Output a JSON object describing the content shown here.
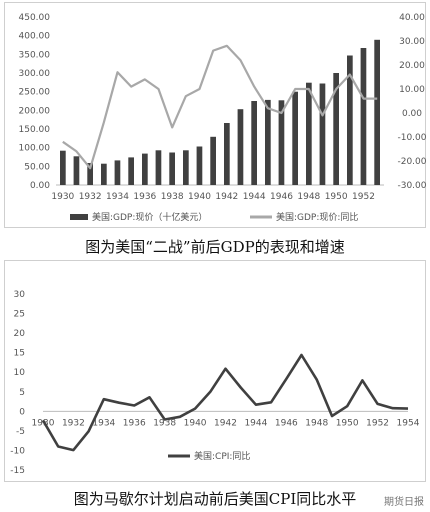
{
  "captions": {
    "top": "图为美国“二战”前后GDP的表现和增速",
    "bottom": "图为马歇尔计划启动前后美国CPI同比水平"
  },
  "watermark": "期货日报",
  "chart_data": [
    {
      "type": "bar+line",
      "categories": [
        1930,
        1931,
        1932,
        1933,
        1934,
        1935,
        1936,
        1937,
        1938,
        1939,
        1940,
        1941,
        1942,
        1943,
        1944,
        1945,
        1946,
        1947,
        1948,
        1949,
        1950,
        1951,
        1952,
        1953
      ],
      "x_tick_labels": [
        "1930",
        "1932",
        "1934",
        "1936",
        "1938",
        "1940",
        "1942",
        "1944",
        "1946",
        "1948",
        "1950",
        "1952"
      ],
      "y_left_ticks": [
        "0.00",
        "50.00",
        "100.00",
        "150.00",
        "200.00",
        "250.00",
        "300.00",
        "350.00",
        "400.00",
        "450.00"
      ],
      "y_right_ticks": [
        "-30.00",
        "-20.00",
        "-10.00",
        "0.00",
        "10.00",
        "20.00",
        "30.00",
        "40.00"
      ],
      "ylim_left": [
        0,
        450
      ],
      "ylim_right": [
        -30,
        40
      ],
      "grid": false,
      "legend_position": "bottom",
      "series": [
        {
          "name": "美国:GDP:现价（十亿美元）",
          "kind": "bar",
          "axis": "left",
          "color": "#404040",
          "values": [
            92,
            77,
            59,
            57,
            66,
            74,
            84,
            93,
            87,
            93,
            103,
            129,
            166,
            203,
            225,
            228,
            227,
            250,
            274,
            272,
            300,
            347,
            367,
            389
          ]
        },
        {
          "name": "美国:GDP:现价:同比",
          "kind": "line",
          "axis": "right",
          "color": "#a8a8a8",
          "values": [
            -12,
            -16,
            -23,
            -4,
            17,
            11,
            14,
            10,
            -6,
            7,
            10,
            26,
            28,
            22,
            11,
            2,
            0,
            10,
            10,
            -1,
            10,
            16,
            6,
            6
          ]
        }
      ]
    },
    {
      "type": "line",
      "x": [
        1930,
        1931,
        1932,
        1933,
        1934,
        1935,
        1936,
        1937,
        1938,
        1939,
        1940,
        1941,
        1942,
        1943,
        1944,
        1945,
        1946,
        1947,
        1948,
        1949,
        1950,
        1951,
        1952,
        1953,
        1954
      ],
      "x_tick_labels": [
        "1930",
        "1932",
        "1934",
        "1936",
        "1938",
        "1940",
        "1942",
        "1944",
        "1946",
        "1948",
        "1950",
        "1952",
        "1954"
      ],
      "y_ticks": [
        "-15",
        "-10",
        "-5",
        "0",
        "5",
        "10",
        "15",
        "20",
        "25",
        "30"
      ],
      "ylim": [
        -15,
        30
      ],
      "grid": false,
      "legend_position": "bottom-left",
      "series": [
        {
          "name": "美国:CPI:同比",
          "color": "#404040",
          "values": [
            -2.3,
            -9,
            -9.9,
            -5.1,
            3.1,
            2.2,
            1.5,
            3.6,
            -2.1,
            -1.4,
            0.7,
            5,
            10.9,
            6.1,
            1.7,
            2.3,
            8.3,
            14.4,
            8.1,
            -1.2,
            1.3,
            7.9,
            1.9,
            0.8,
            0.7
          ]
        }
      ]
    }
  ]
}
